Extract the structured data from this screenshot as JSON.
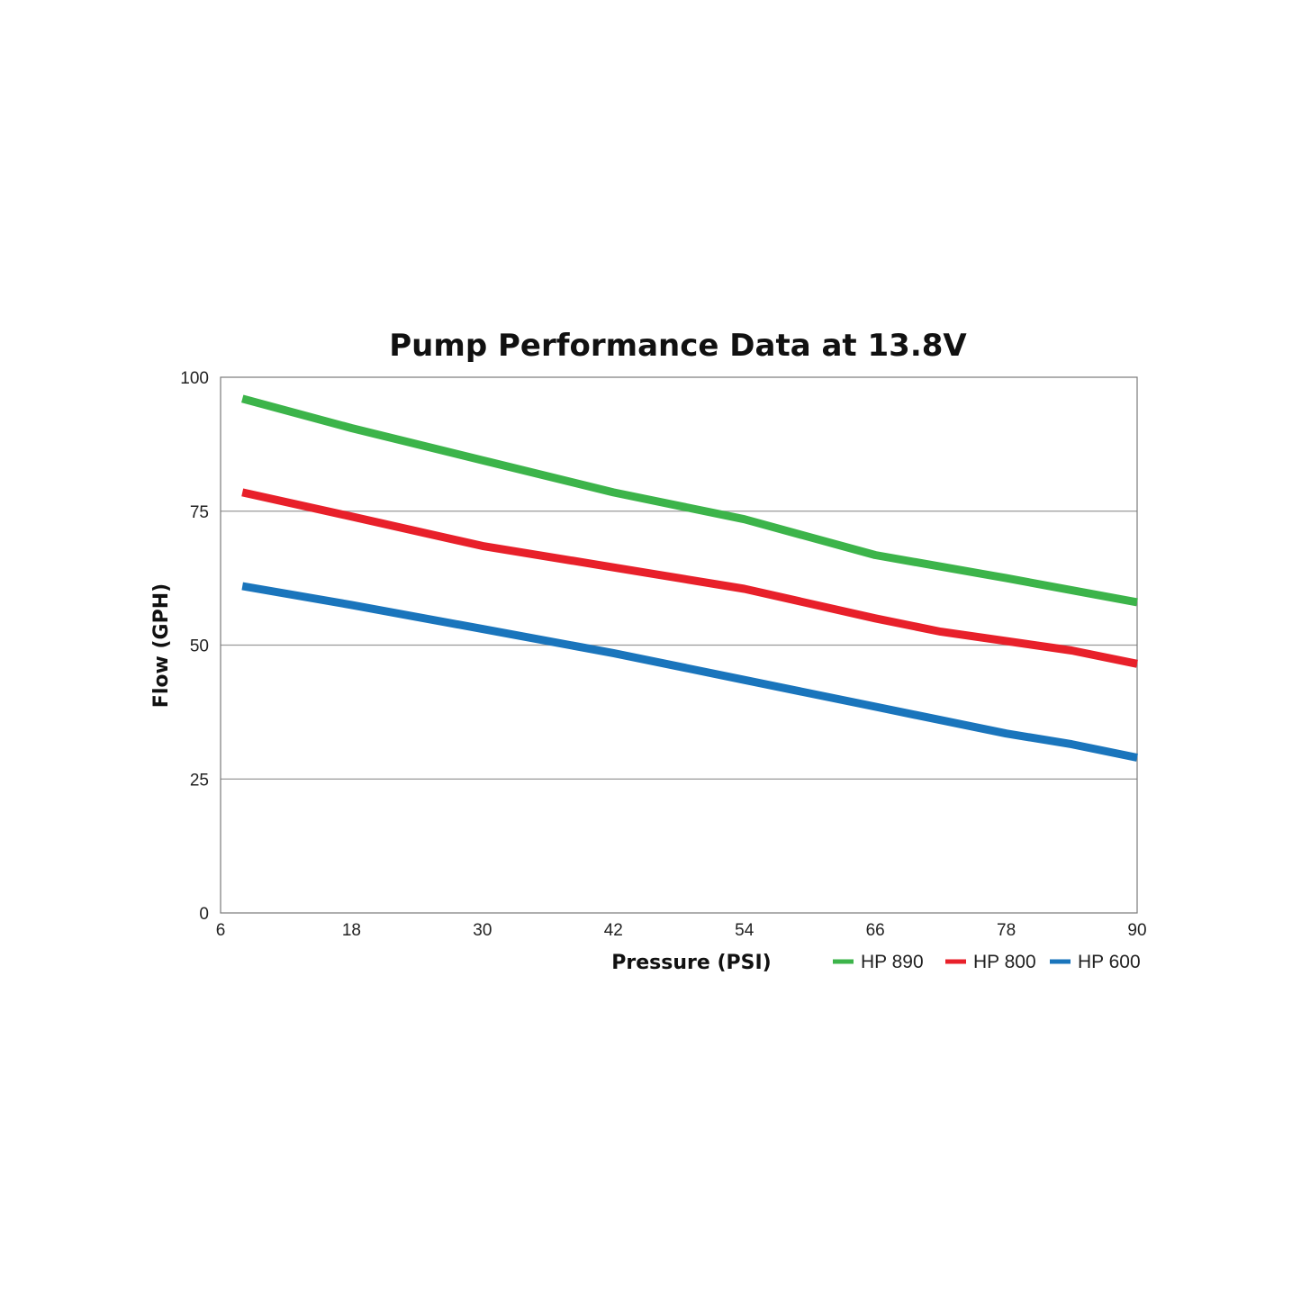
{
  "chart_data": {
    "type": "line",
    "title": "Pump Performance Data at 13.8V",
    "xlabel": "Pressure (PSI)",
    "ylabel": "Flow (GPH)",
    "xlim": [
      6,
      90
    ],
    "ylim": [
      0,
      100
    ],
    "xticks": [
      "6",
      "18",
      "30",
      "42",
      "54",
      "66",
      "78",
      "90"
    ],
    "yticks": [
      "0",
      "25",
      "50",
      "75",
      "100"
    ],
    "grid": "horizontal",
    "legend_position": "bottom-right",
    "series": [
      {
        "name": "HP 890",
        "color": "#3cb44a",
        "x": [
          8,
          18,
          30,
          42,
          48,
          54,
          66,
          78,
          90
        ],
        "y": [
          96,
          90.5,
          84.5,
          78.5,
          76,
          73.5,
          66.8,
          62.5,
          58
        ]
      },
      {
        "name": "HP 800",
        "color": "#e8202a",
        "x": [
          8,
          18,
          30,
          42,
          48,
          54,
          66,
          72,
          84,
          90
        ],
        "y": [
          78.5,
          74,
          68.5,
          64.5,
          62.5,
          60.5,
          55,
          52.5,
          49,
          46.5
        ]
      },
      {
        "name": "HP 600",
        "color": "#1a75bc",
        "x": [
          8,
          18,
          30,
          42,
          54,
          66,
          78,
          84,
          90
        ],
        "y": [
          61,
          57.5,
          53,
          48.5,
          43.5,
          38.5,
          33.5,
          31.5,
          29
        ]
      }
    ]
  }
}
